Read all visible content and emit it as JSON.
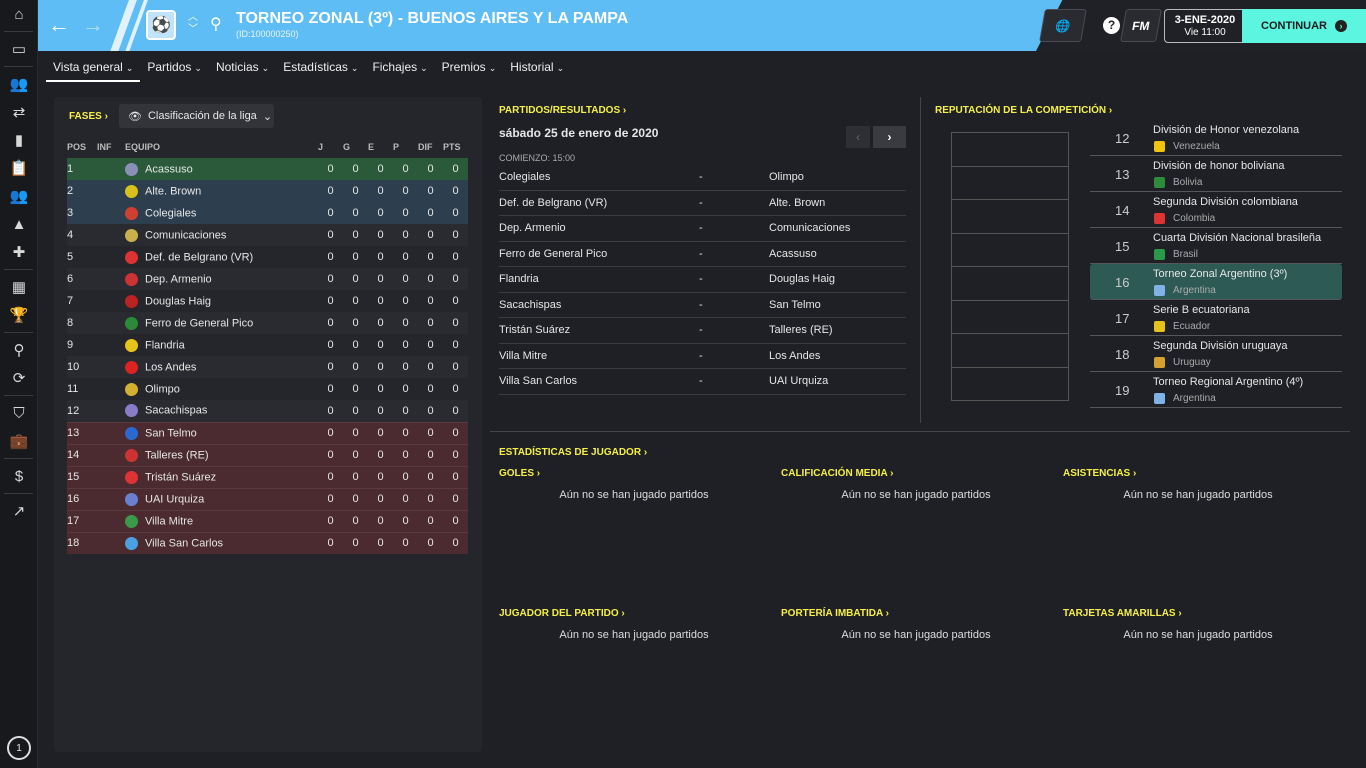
{
  "sidebar": {
    "icons": [
      "home-icon",
      "inbox-icon",
      "squad-icon",
      "transfers-icon",
      "dynamics-icon",
      "tactics-icon",
      "staff-icon",
      "training-icon",
      "medical-icon",
      "calendar-icon",
      "trophy-icon",
      "scouting-icon",
      "transfer-exchange-icon",
      "club-icon",
      "briefcase-icon",
      "finances-icon",
      "development-icon"
    ],
    "clock_value": "1"
  },
  "header": {
    "title": "TORNEO ZONAL (3º) - BUENOS AIRES Y LA PAMPA",
    "subtitle": "(ID:100000250)",
    "fm_label": "FM",
    "date": "3-ENE-2020",
    "time": "Vie 11:00",
    "continue_label": "CONTINUAR",
    "accent": "#5ebdf4",
    "continue_color": "#5cf5e0"
  },
  "tabs": [
    "Vista general",
    "Partidos",
    "Noticias",
    "Estadísticas",
    "Fichajes",
    "Premios",
    "Historial"
  ],
  "standings": {
    "stages_label": "FASES",
    "view_label": "Clasificación de la liga",
    "columns": [
      "POS",
      "INF",
      "EQUIPO",
      "J",
      "G",
      "E",
      "P",
      "DIF",
      "PTS"
    ],
    "rows": [
      [
        "1",
        "",
        "Acassuso",
        "0",
        "0",
        "0",
        "0",
        "0",
        "0"
      ],
      [
        "2",
        "",
        "Alte. Brown",
        "0",
        "0",
        "0",
        "0",
        "0",
        "0"
      ],
      [
        "3",
        "",
        "Colegiales",
        "0",
        "0",
        "0",
        "0",
        "0",
        "0"
      ],
      [
        "4",
        "",
        "Comunicaciones",
        "0",
        "0",
        "0",
        "0",
        "0",
        "0"
      ],
      [
        "5",
        "",
        "Def. de Belgrano (VR)",
        "0",
        "0",
        "0",
        "0",
        "0",
        "0"
      ],
      [
        "6",
        "",
        "Dep. Armenio",
        "0",
        "0",
        "0",
        "0",
        "0",
        "0"
      ],
      [
        "7",
        "",
        "Douglas Haig",
        "0",
        "0",
        "0",
        "0",
        "0",
        "0"
      ],
      [
        "8",
        "",
        "Ferro de General Pico",
        "0",
        "0",
        "0",
        "0",
        "0",
        "0"
      ],
      [
        "9",
        "",
        "Flandria",
        "0",
        "0",
        "0",
        "0",
        "0",
        "0"
      ],
      [
        "10",
        "",
        "Los Andes",
        "0",
        "0",
        "0",
        "0",
        "0",
        "0"
      ],
      [
        "11",
        "",
        "Olimpo",
        "0",
        "0",
        "0",
        "0",
        "0",
        "0"
      ],
      [
        "12",
        "",
        "Sacachispas",
        "0",
        "0",
        "0",
        "0",
        "0",
        "0"
      ],
      [
        "13",
        "",
        "San Telmo",
        "0",
        "0",
        "0",
        "0",
        "0",
        "0"
      ],
      [
        "14",
        "",
        "Talleres (RE)",
        "0",
        "0",
        "0",
        "0",
        "0",
        "0"
      ],
      [
        "15",
        "",
        "Tristán Suárez",
        "0",
        "0",
        "0",
        "0",
        "0",
        "0"
      ],
      [
        "16",
        "",
        "UAI Urquiza",
        "0",
        "0",
        "0",
        "0",
        "0",
        "0"
      ],
      [
        "17",
        "",
        "Villa Mitre",
        "0",
        "0",
        "0",
        "0",
        "0",
        "0"
      ],
      [
        "18",
        "",
        "Villa San Carlos",
        "0",
        "0",
        "0",
        "0",
        "0",
        "0"
      ]
    ],
    "zone_colors": {
      "promotion": "#2a5a3a",
      "playoff": "#2d3f4f",
      "relegation": "#4b2b2f"
    }
  },
  "fixtures": {
    "title": "PARTIDOS/RESULTADOS",
    "date": "sábado 25 de enero de 2020",
    "kickoff": "COMIENZO: 15:00",
    "matches": [
      [
        "Colegiales",
        "-",
        "Olimpo"
      ],
      [
        "Def. de Belgrano (VR)",
        "-",
        "Alte. Brown"
      ],
      [
        "Dep. Armenio",
        "-",
        "Comunicaciones"
      ],
      [
        "Ferro de General Pico",
        "-",
        "Acassuso"
      ],
      [
        "Flandria",
        "-",
        "Douglas Haig"
      ],
      [
        "Sacachispas",
        "-",
        "San Telmo"
      ],
      [
        "Tristán Suárez",
        "-",
        "Talleres (RE)"
      ],
      [
        "Villa Mitre",
        "-",
        "Los Andes"
      ],
      [
        "Villa San Carlos",
        "-",
        "UAI Urquiza"
      ]
    ]
  },
  "reputation": {
    "title": "REPUTACIÓN DE LA COMPETICIÓN",
    "items": [
      {
        "rank": "12",
        "name": "División de Honor venezolana",
        "country": "Venezuela"
      },
      {
        "rank": "13",
        "name": "División de honor boliviana",
        "country": "Bolivia"
      },
      {
        "rank": "14",
        "name": "Segunda División colombiana",
        "country": "Colombia"
      },
      {
        "rank": "15",
        "name": "Cuarta División Nacional brasileña",
        "country": "Brasil"
      },
      {
        "rank": "16",
        "name": "Torneo Zonal Argentino (3º)",
        "country": "Argentina",
        "highlighted": true
      },
      {
        "rank": "17",
        "name": "Serie B ecuatoriana",
        "country": "Ecuador"
      },
      {
        "rank": "18",
        "name": "Segunda División uruguaya",
        "country": "Uruguay"
      },
      {
        "rank": "19",
        "name": "Torneo Regional Argentino (4º)",
        "country": "Argentina"
      }
    ]
  },
  "player_stats": {
    "title": "ESTADÍSTICAS DE JUGADOR",
    "sections": [
      {
        "label": "GOLES",
        "message": "Aún no se han jugado partidos"
      },
      {
        "label": "CALIFICACIÓN MEDIA",
        "message": "Aún no se han jugado partidos"
      },
      {
        "label": "ASISTENCIAS",
        "message": "Aún no se han jugado partidos"
      },
      {
        "label": "JUGADOR DEL PARTIDO",
        "message": "Aún no se han jugado partidos"
      },
      {
        "label": "PORTERÍA IMBATIDA",
        "message": "Aún no se han jugado partidos"
      },
      {
        "label": "TARJETAS AMARILLAS",
        "message": "Aún no se han jugado partidos"
      }
    ]
  }
}
